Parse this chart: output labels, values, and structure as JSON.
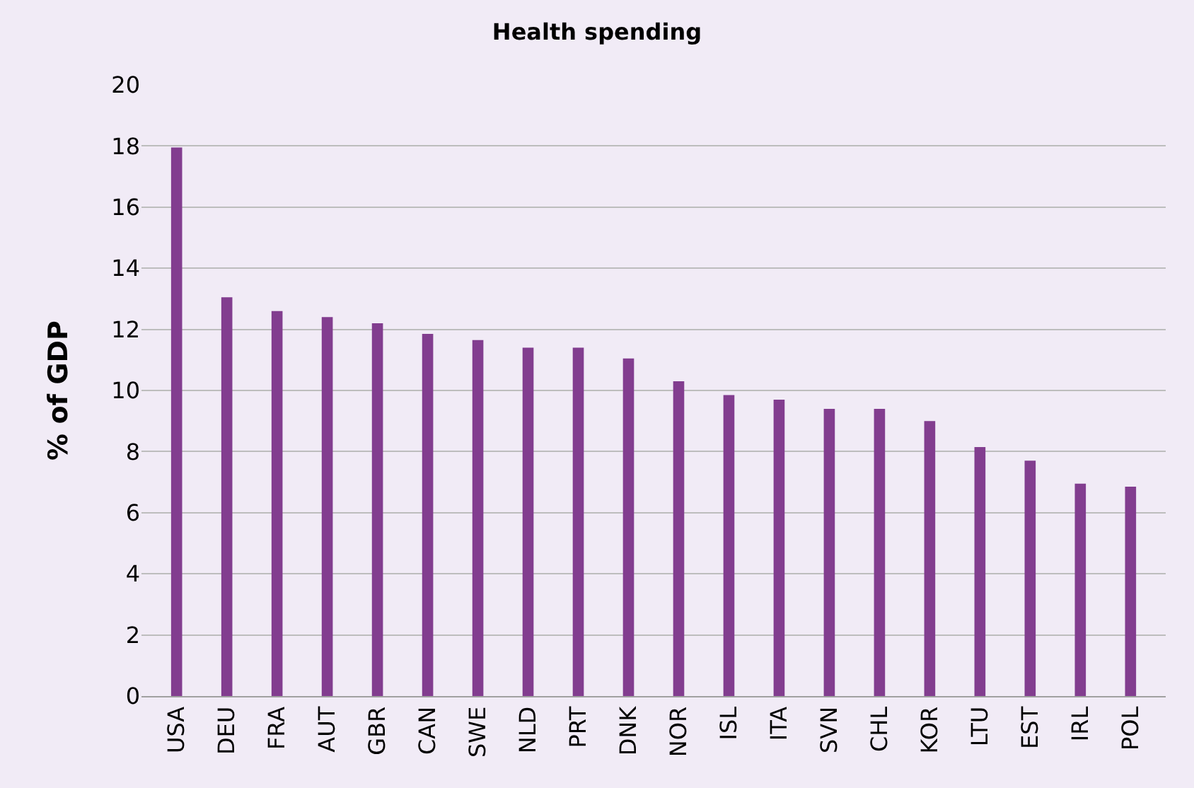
{
  "chart_data": {
    "type": "bar",
    "title": "Health spending",
    "ylabel": "% of GDP",
    "categories": [
      "USA",
      "DEU",
      "FRA",
      "AUT",
      "GBR",
      "CAN",
      "SWE",
      "NLD",
      "PRT",
      "DNK",
      "NOR",
      "ISL",
      "ITA",
      "SVN",
      "CHL",
      "KOR",
      "LTU",
      "EST",
      "IRL",
      "POL"
    ],
    "values": [
      17.95,
      13.05,
      12.6,
      12.4,
      12.2,
      11.85,
      11.65,
      11.4,
      11.4,
      11.05,
      10.3,
      9.85,
      9.7,
      9.4,
      9.4,
      9.0,
      8.15,
      7.7,
      6.95,
      6.85
    ],
    "color": "#823d8f",
    "ylim": [
      0,
      20
    ],
    "yticks": [
      0,
      2,
      4,
      6,
      8,
      10,
      12,
      14,
      16,
      18,
      20
    ],
    "grid": "y"
  }
}
